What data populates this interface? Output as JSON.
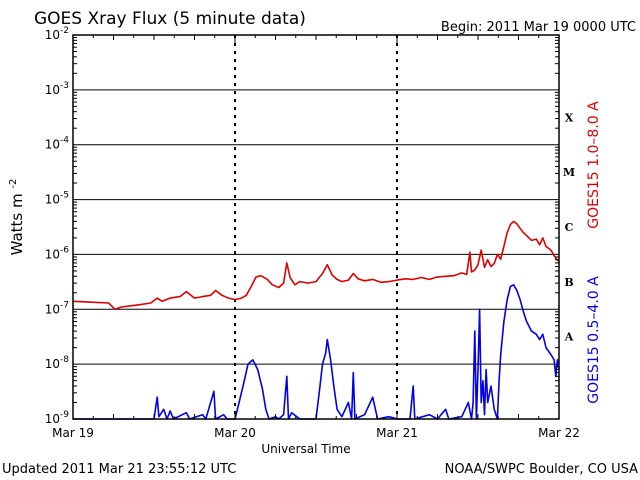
{
  "header": {
    "title": "GOES Xray Flux (5 minute data)",
    "begin_label": "Begin:  2011 Mar 19 0000 UTC"
  },
  "footer": {
    "updated": "Updated 2011 Mar 21 23:55:12 UTC",
    "source": "NOAA/SWPC Boulder, CO USA"
  },
  "colors": {
    "long_channel": "#e00000",
    "short_channel": "#0000ee",
    "axis": "#000000"
  },
  "chart_data": {
    "type": "line",
    "title": "GOES Xray Flux (5 minute data)",
    "xlabel": "Universal Time",
    "ylabel_base": "Watts m",
    "ylabel_exp": "-2",
    "yscale": "log",
    "ylim": [
      1e-09,
      0.01
    ],
    "xlim_days": [
      0,
      3
    ],
    "grid": true,
    "x_ticks": [
      "Mar 19",
      "Mar 20",
      "Mar 21",
      "Mar 22"
    ],
    "y_ticks": [
      {
        "base": "10",
        "exp": "-2"
      },
      {
        "base": "10",
        "exp": "-3"
      },
      {
        "base": "10",
        "exp": "-4"
      },
      {
        "base": "10",
        "exp": "-5"
      },
      {
        "base": "10",
        "exp": "-6"
      },
      {
        "base": "10",
        "exp": "-7"
      },
      {
        "base": "10",
        "exp": "-8"
      },
      {
        "base": "10",
        "exp": "-9"
      }
    ],
    "flare_classes": [
      "X",
      "M",
      "C",
      "B",
      "A"
    ],
    "series": [
      {
        "name": "GOES15 1.0–8.0 A",
        "color": "#e00000",
        "points": [
          [
            0.0,
            1.4e-07
          ],
          [
            0.1,
            1.35e-07
          ],
          [
            0.22,
            1.3e-07
          ],
          [
            0.26,
            1e-07
          ],
          [
            0.3,
            1.1e-07
          ],
          [
            0.4,
            1.2e-07
          ],
          [
            0.48,
            1.3e-07
          ],
          [
            0.52,
            1.6e-07
          ],
          [
            0.55,
            1.4e-07
          ],
          [
            0.6,
            1.6e-07
          ],
          [
            0.66,
            1.7e-07
          ],
          [
            0.7,
            2.1e-07
          ],
          [
            0.75,
            1.6e-07
          ],
          [
            0.8,
            1.7e-07
          ],
          [
            0.85,
            1.8e-07
          ],
          [
            0.88,
            2.2e-07
          ],
          [
            0.92,
            1.8e-07
          ],
          [
            0.96,
            1.6e-07
          ],
          [
            1.0,
            1.5e-07
          ],
          [
            1.04,
            1.6e-07
          ],
          [
            1.07,
            1.8e-07
          ],
          [
            1.1,
            2.6e-07
          ],
          [
            1.13,
            3.9e-07
          ],
          [
            1.16,
            4.1e-07
          ],
          [
            1.2,
            3.5e-07
          ],
          [
            1.23,
            2.8e-07
          ],
          [
            1.27,
            2.5e-07
          ],
          [
            1.3,
            3e-07
          ],
          [
            1.32,
            7e-07
          ],
          [
            1.34,
            3.8e-07
          ],
          [
            1.37,
            2.8e-07
          ],
          [
            1.4,
            3.2e-07
          ],
          [
            1.45,
            3e-07
          ],
          [
            1.5,
            3.2e-07
          ],
          [
            1.54,
            4.5e-07
          ],
          [
            1.57,
            6.5e-07
          ],
          [
            1.6,
            4.2e-07
          ],
          [
            1.63,
            3.5e-07
          ],
          [
            1.66,
            3.2e-07
          ],
          [
            1.7,
            3.4e-07
          ],
          [
            1.73,
            4.5e-07
          ],
          [
            1.76,
            3.6e-07
          ],
          [
            1.8,
            3.3e-07
          ],
          [
            1.85,
            3.5e-07
          ],
          [
            1.9,
            3.1e-07
          ],
          [
            1.95,
            3.2e-07
          ],
          [
            2.0,
            3.4e-07
          ],
          [
            2.05,
            3.6e-07
          ],
          [
            2.1,
            3.5e-07
          ],
          [
            2.15,
            3.8e-07
          ],
          [
            2.2,
            3.5e-07
          ],
          [
            2.25,
            3.9e-07
          ],
          [
            2.3,
            4e-07
          ],
          [
            2.35,
            4.1e-07
          ],
          [
            2.4,
            4.6e-07
          ],
          [
            2.43,
            4.3e-07
          ],
          [
            2.45,
            1.1e-06
          ],
          [
            2.46,
            4.8e-07
          ],
          [
            2.48,
            5.2e-07
          ],
          [
            2.5,
            6.5e-07
          ],
          [
            2.52,
            1.2e-06
          ],
          [
            2.54,
            5.8e-07
          ],
          [
            2.56,
            8e-07
          ],
          [
            2.58,
            6e-07
          ],
          [
            2.6,
            6.8e-07
          ],
          [
            2.62,
            1e-06
          ],
          [
            2.64,
            8.2e-07
          ],
          [
            2.66,
            1.4e-06
          ],
          [
            2.68,
            2.5e-06
          ],
          [
            2.7,
            3.5e-06
          ],
          [
            2.72,
            4e-06
          ],
          [
            2.74,
            3.6e-06
          ],
          [
            2.76,
            3e-06
          ],
          [
            2.78,
            2.5e-06
          ],
          [
            2.8,
            2.2e-06
          ],
          [
            2.83,
            1.8e-06
          ],
          [
            2.86,
            1.9e-06
          ],
          [
            2.88,
            1.5e-06
          ],
          [
            2.9,
            2e-06
          ],
          [
            2.92,
            1.4e-06
          ],
          [
            2.95,
            1.2e-06
          ],
          [
            2.98,
            8.5e-07
          ],
          [
            3.0,
            7.5e-07
          ]
        ]
      },
      {
        "name": "GOES15 0.5–4.0 A",
        "color": "#0000ee",
        "points": [
          [
            0.0,
            1e-09
          ],
          [
            0.28,
            1e-09
          ],
          [
            0.5,
            1e-09
          ],
          [
            0.52,
            2.5e-09
          ],
          [
            0.53,
            1.1e-09
          ],
          [
            0.56,
            1.5e-09
          ],
          [
            0.58,
            1e-09
          ],
          [
            0.6,
            1.4e-09
          ],
          [
            0.62,
            1e-09
          ],
          [
            0.7,
            1.3e-09
          ],
          [
            0.72,
            1e-09
          ],
          [
            0.8,
            1.2e-09
          ],
          [
            0.82,
            1e-09
          ],
          [
            0.87,
            3.2e-09
          ],
          [
            0.88,
            1e-09
          ],
          [
            0.93,
            1.2e-09
          ],
          [
            0.95,
            1e-09
          ],
          [
            1.0,
            1e-09
          ],
          [
            1.05,
            4e-09
          ],
          [
            1.08,
            1e-08
          ],
          [
            1.11,
            1.2e-08
          ],
          [
            1.14,
            8e-09
          ],
          [
            1.17,
            3.5e-09
          ],
          [
            1.19,
            1.5e-09
          ],
          [
            1.21,
            1e-09
          ],
          [
            1.25,
            1.1e-09
          ],
          [
            1.27,
            1e-09
          ],
          [
            1.3,
            1.2e-09
          ],
          [
            1.32,
            6e-09
          ],
          [
            1.33,
            1e-09
          ],
          [
            1.35,
            1.3e-09
          ],
          [
            1.4,
            1e-09
          ],
          [
            1.5,
            1e-09
          ],
          [
            1.52,
            3e-09
          ],
          [
            1.54,
            1e-08
          ],
          [
            1.56,
            1.6e-08
          ],
          [
            1.57,
            2.8e-08
          ],
          [
            1.59,
            1.2e-08
          ],
          [
            1.61,
            4e-09
          ],
          [
            1.63,
            1.5e-09
          ],
          [
            1.66,
            1.1e-09
          ],
          [
            1.7,
            2e-09
          ],
          [
            1.72,
            1e-09
          ],
          [
            1.73,
            7e-09
          ],
          [
            1.74,
            1e-09
          ],
          [
            1.8,
            1.2e-09
          ],
          [
            1.85,
            2.5e-09
          ],
          [
            1.88,
            1e-09
          ],
          [
            1.95,
            1.1e-09
          ],
          [
            2.0,
            1e-09
          ],
          [
            2.08,
            1e-09
          ],
          [
            2.1,
            4e-09
          ],
          [
            2.11,
            1e-09
          ],
          [
            2.2,
            1.2e-09
          ],
          [
            2.25,
            1e-09
          ],
          [
            2.3,
            1.5e-09
          ],
          [
            2.32,
            1e-09
          ],
          [
            2.4,
            1.1e-09
          ],
          [
            2.44,
            2e-09
          ],
          [
            2.46,
            1e-09
          ],
          [
            2.47,
            2e-09
          ],
          [
            2.48,
            4e-08
          ],
          [
            2.49,
            1e-09
          ],
          [
            2.5,
            8e-09
          ],
          [
            2.51,
            1e-07
          ],
          [
            2.52,
            2e-09
          ],
          [
            2.53,
            5e-09
          ],
          [
            2.54,
            1.2e-09
          ],
          [
            2.55,
            8e-09
          ],
          [
            2.56,
            2e-09
          ],
          [
            2.58,
            4e-09
          ],
          [
            2.6,
            1.5e-09
          ],
          [
            2.62,
            1e-09
          ],
          [
            2.63,
            5e-09
          ],
          [
            2.64,
            1.5e-08
          ],
          [
            2.66,
            6e-08
          ],
          [
            2.68,
            1.5e-07
          ],
          [
            2.7,
            2.6e-07
          ],
          [
            2.72,
            2.8e-07
          ],
          [
            2.74,
            2.2e-07
          ],
          [
            2.76,
            1.5e-07
          ],
          [
            2.78,
            9e-08
          ],
          [
            2.8,
            6e-08
          ],
          [
            2.83,
            4e-08
          ],
          [
            2.86,
            3.5e-08
          ],
          [
            2.88,
            2.8e-08
          ],
          [
            2.9,
            3.5e-08
          ],
          [
            2.92,
            2e-08
          ],
          [
            2.95,
            1.5e-08
          ],
          [
            2.97,
            1.2e-08
          ],
          [
            2.98,
            6e-09
          ],
          [
            2.99,
            1.2e-08
          ],
          [
            3.0,
            8e-09
          ]
        ]
      }
    ]
  }
}
